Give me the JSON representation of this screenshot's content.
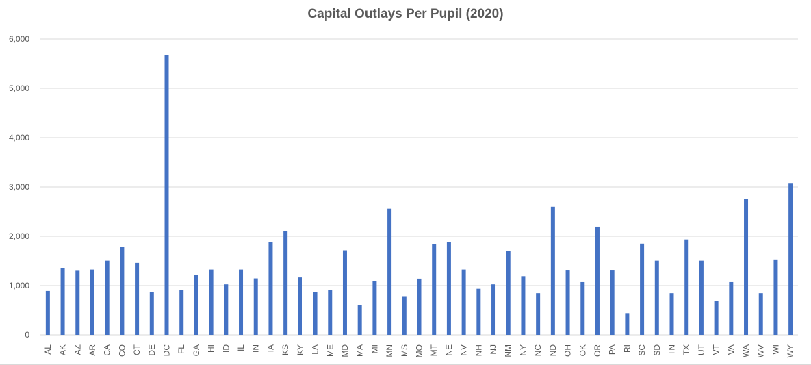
{
  "chart_data": {
    "type": "bar",
    "title": "Capital Outlays Per Pupil (2020)",
    "xlabel": "",
    "ylabel": "",
    "ylim": [
      0,
      6000
    ],
    "yticks": [
      "0",
      "1,000",
      "2,000",
      "3,000",
      "4,000",
      "5,000",
      "6,000"
    ],
    "grid": true,
    "legend": "none",
    "bar_color": "#4472c4",
    "categories": [
      "AL",
      "AK",
      "AZ",
      "AR",
      "CA",
      "CO",
      "CT",
      "DE",
      "DC",
      "FL",
      "GA",
      "HI",
      "ID",
      "IL",
      "IN",
      "IA",
      "KS",
      "KY",
      "LA",
      "ME",
      "MD",
      "MA",
      "MI",
      "MN",
      "MS",
      "MO",
      "MT",
      "NE",
      "NV",
      "NH",
      "NJ",
      "NM",
      "NY",
      "NC",
      "ND",
      "OH",
      "OK",
      "OR",
      "PA",
      "RI",
      "SC",
      "SD",
      "TN",
      "TX",
      "UT",
      "VT",
      "VA",
      "WA",
      "WV",
      "WI",
      "WY"
    ],
    "values": [
      890,
      1350,
      1300,
      1325,
      1505,
      1785,
      1460,
      870,
      5680,
      915,
      1210,
      1325,
      1025,
      1325,
      1145,
      1875,
      2100,
      1165,
      870,
      910,
      1715,
      600,
      1095,
      2560,
      785,
      1140,
      1845,
      1875,
      1325,
      935,
      1025,
      1695,
      1190,
      845,
      2600,
      1305,
      1070,
      2195,
      1305,
      440,
      1850,
      1505,
      845,
      1935,
      1505,
      690,
      1070,
      2760,
      845,
      1530,
      3080
    ]
  }
}
